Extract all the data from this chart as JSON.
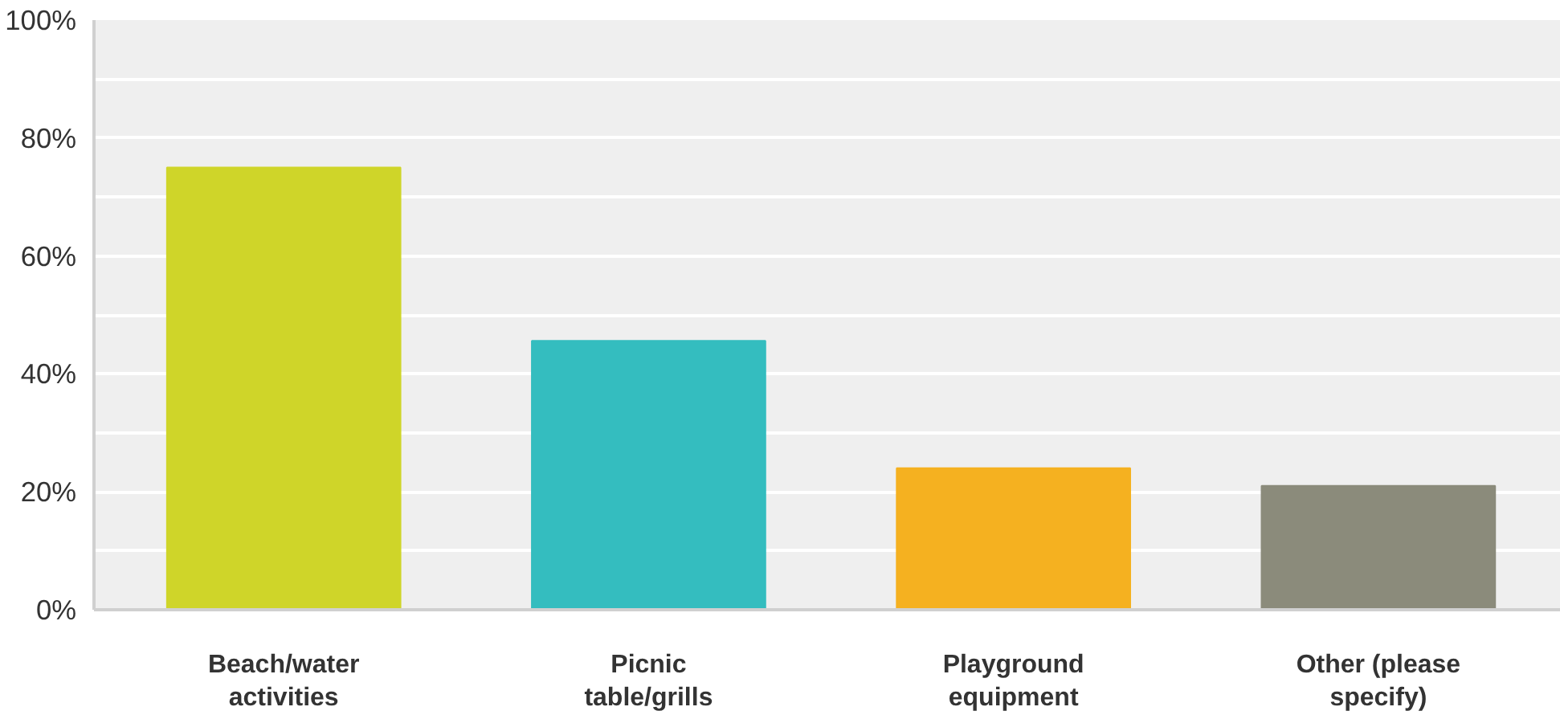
{
  "chart_data": {
    "type": "bar",
    "categories": [
      "Beach/water activities",
      "Picnic table/grills",
      "Playground equipment",
      "Other (please specify)"
    ],
    "values": [
      75,
      45.6,
      24,
      21
    ],
    "colors": [
      "#cfd529",
      "#34bdbf",
      "#f5b120",
      "#8b8b7b"
    ],
    "ylim": [
      0,
      100
    ],
    "yticks": [
      {
        "value": 0,
        "label": "0%"
      },
      {
        "value": 10,
        "label": null
      },
      {
        "value": 20,
        "label": "20%"
      },
      {
        "value": 30,
        "label": null
      },
      {
        "value": 40,
        "label": "40%"
      },
      {
        "value": 50,
        "label": null
      },
      {
        "value": 60,
        "label": "60%"
      },
      {
        "value": 70,
        "label": null
      },
      {
        "value": 80,
        "label": "80%"
      },
      {
        "value": 90,
        "label": null
      },
      {
        "value": 100,
        "label": "100%"
      }
    ],
    "grid": "y"
  }
}
